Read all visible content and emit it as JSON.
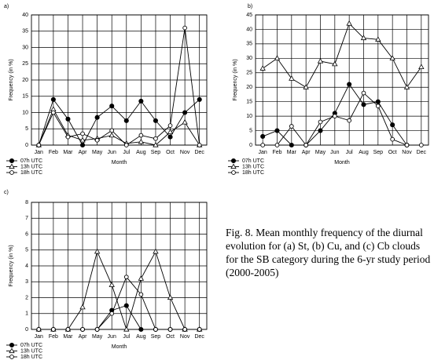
{
  "chart_data": [
    {
      "type": "line",
      "label": "a)",
      "x_label": "Month",
      "y_label": "Frequency (in %)",
      "categories": [
        "Jan",
        "Feb",
        "Mar",
        "Apr",
        "May",
        "Jun",
        "Jul",
        "Aug",
        "Sep",
        "Oct",
        "Nov",
        "Dec"
      ],
      "series": [
        {
          "name": "07h UTC",
          "color": "#000000",
          "marker": "filled-circle",
          "values": [
            0,
            14,
            8,
            0,
            8.5,
            12,
            7.5,
            13.5,
            7.5,
            2.5,
            10,
            14
          ]
        },
        {
          "name": "13h UTC",
          "color": "#000000",
          "marker": "triangle",
          "values": [
            0,
            11,
            3,
            1.5,
            2,
            3,
            0.5,
            1,
            0,
            4,
            7,
            0
          ]
        },
        {
          "name": "18h UTC",
          "color": "#000000",
          "marker": "open-circle",
          "values": [
            0,
            10,
            2.5,
            3.5,
            1.5,
            4.5,
            0,
            3,
            2,
            6,
            36,
            0
          ]
        }
      ],
      "ylim": [
        0,
        40
      ],
      "yticks": [
        0,
        5,
        10,
        15,
        20,
        25,
        30,
        35,
        40
      ],
      "grid": true
    },
    {
      "type": "line",
      "label": "b)",
      "x_label": "Month",
      "y_label": "Frequency (in %)",
      "categories": [
        "Jan",
        "Feb",
        "Mar",
        "Apr",
        "May",
        "Jun",
        "Jul",
        "Aug",
        "Sep",
        "Oct",
        "Nov",
        "Dec"
      ],
      "series": [
        {
          "name": "07h UTC",
          "color": "#000000",
          "marker": "filled-circle",
          "values": [
            3,
            5,
            0,
            0,
            5,
            11,
            21,
            14,
            15,
            7,
            0,
            null
          ]
        },
        {
          "name": "13h UTC",
          "color": "#000000",
          "marker": "triangle",
          "values": [
            26.5,
            30,
            23,
            20,
            29,
            28,
            42,
            37,
            36.5,
            30,
            20,
            27
          ]
        },
        {
          "name": "18h UTC",
          "color": "#000000",
          "marker": "open-circle",
          "values": [
            0,
            0,
            6.5,
            0,
            8,
            10,
            8.5,
            18,
            13.5,
            2,
            0,
            0
          ]
        }
      ],
      "ylim": [
        0,
        45
      ],
      "yticks": [
        0,
        5,
        10,
        15,
        20,
        25,
        30,
        35,
        40,
        45
      ],
      "grid": true
    },
    {
      "type": "line",
      "label": "c)",
      "x_label": "Month",
      "y_label": "Frequency (in %)",
      "categories": [
        "Jan",
        "Feb",
        "Mar",
        "Apr",
        "May",
        "Jun",
        "Jul",
        "Aug",
        "Sep",
        "Oct",
        "Nov",
        "Dec"
      ],
      "series": [
        {
          "name": "07h UTC",
          "color": "#000000",
          "marker": "filled-circle",
          "values": [
            0,
            0,
            0,
            0,
            0,
            1.2,
            1.5,
            0,
            0,
            0,
            0,
            0
          ]
        },
        {
          "name": "13h UTC",
          "color": "#000000",
          "marker": "triangle",
          "values": [
            0,
            0,
            0,
            1.4,
            4.9,
            2.8,
            0,
            3.2,
            4.9,
            2,
            0,
            0
          ]
        },
        {
          "name": "18h UTC",
          "color": "#000000",
          "marker": "open-circle",
          "values": [
            0,
            0,
            0,
            0,
            0,
            1,
            3.3,
            2.2,
            0,
            0,
            0,
            0
          ]
        }
      ],
      "ylim": [
        0,
        8
      ],
      "yticks": [
        0,
        1,
        2,
        3,
        4,
        5,
        6,
        7,
        8
      ],
      "grid": true
    }
  ],
  "caption": "Fig. 8. Mean monthly frequency of the diurnal evolution for (a) St, (b) Cu, and (c) Cb clouds for the SB category during the 6-yr study period (2000-2005)"
}
